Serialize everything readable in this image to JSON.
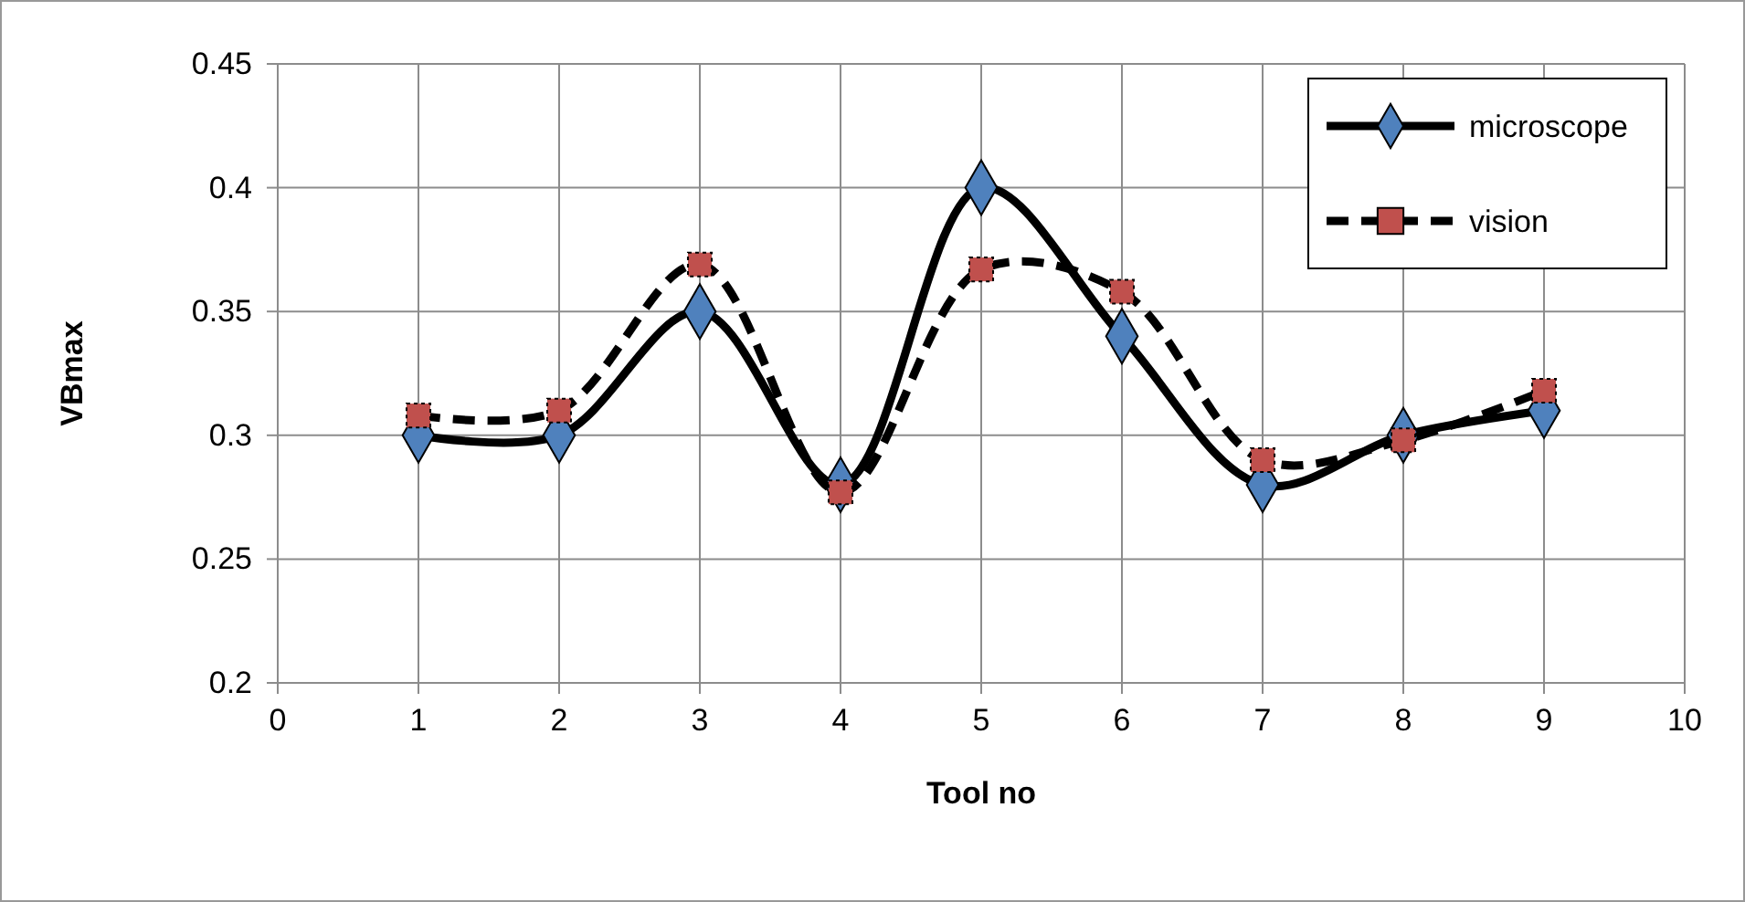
{
  "chart_data": {
    "type": "line",
    "xlabel": "Tool no",
    "ylabel": "VBmax",
    "x": [
      1,
      2,
      3,
      4,
      5,
      6,
      7,
      8,
      9
    ],
    "xlim": [
      0,
      10
    ],
    "xticks": [
      0,
      1,
      2,
      3,
      4,
      5,
      6,
      7,
      8,
      9,
      10
    ],
    "ylim": [
      0.2,
      0.45
    ],
    "yticks": [
      0.2,
      0.25,
      0.3,
      0.35,
      0.4,
      0.45
    ],
    "grid": true,
    "legend": "top right",
    "series": [
      {
        "name": "microscope",
        "color": "#4f81bd",
        "marker": "diamond",
        "line_style": "solid",
        "values": [
          0.3,
          0.3,
          0.35,
          0.28,
          0.4,
          0.34,
          0.28,
          0.3,
          0.31
        ]
      },
      {
        "name": "vision",
        "color": "#c0504d",
        "marker": "square",
        "line_style": "dashed",
        "values": [
          0.308,
          0.31,
          0.369,
          0.277,
          0.367,
          0.358,
          0.29,
          0.298,
          0.318
        ]
      }
    ]
  }
}
